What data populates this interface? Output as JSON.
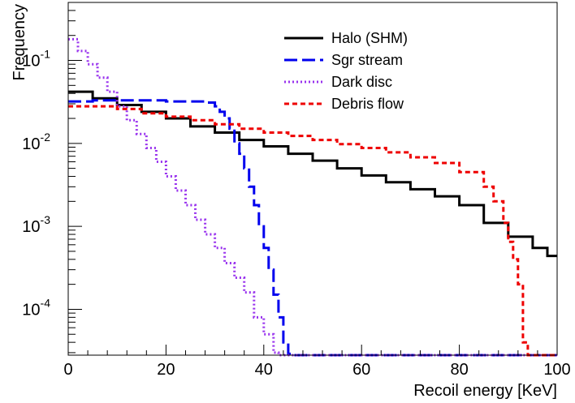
{
  "chart_data": {
    "type": "line",
    "xlabel": "Recoil energy [KeV]",
    "ylabel": "Frequency",
    "xlim": [
      0,
      100
    ],
    "ylim": [
      2.8e-05,
      0.5
    ],
    "y_scale": "log",
    "x_ticks": [
      0,
      20,
      40,
      60,
      80,
      100
    ],
    "y_ticks": [
      {
        "value": 0.1,
        "base": "10",
        "exp": "-1"
      },
      {
        "value": 0.01,
        "base": "10",
        "exp": "-2"
      },
      {
        "value": 0.001,
        "base": "10",
        "exp": "-3"
      },
      {
        "value": 0.0001,
        "base": "10",
        "exp": "-4"
      }
    ],
    "grid": false,
    "legend_position": "top-right",
    "series": [
      {
        "name": "Halo (SHM)",
        "color": "#000000",
        "dash": "solid",
        "x": [
          0,
          5,
          10,
          15,
          20,
          25,
          30,
          35,
          40,
          45,
          50,
          55,
          60,
          65,
          70,
          75,
          80,
          85,
          90,
          95,
          98,
          100
        ],
        "y": [
          0.042,
          0.035,
          0.029,
          0.024,
          0.02,
          0.016,
          0.0135,
          0.011,
          0.0092,
          0.0075,
          0.0062,
          0.005,
          0.0041,
          0.0034,
          0.0028,
          0.0023,
          0.0018,
          0.0011,
          0.00075,
          0.00055,
          0.00044,
          0.00044
        ]
      },
      {
        "name": "Sgr stream",
        "color": "#0000ee",
        "dash": "long-dash",
        "x": [
          0,
          5,
          10,
          15,
          20,
          25,
          28,
          30,
          31,
          32,
          33,
          34,
          35,
          36,
          37,
          38,
          39,
          40,
          41,
          42,
          43,
          44,
          45,
          46,
          50,
          100
        ],
        "y": [
          0.032,
          0.033,
          0.033,
          0.033,
          0.032,
          0.032,
          0.031,
          0.028,
          0.024,
          0.02,
          0.015,
          0.01,
          0.0075,
          0.005,
          0.003,
          0.0018,
          0.001,
          0.00055,
          0.0003,
          0.00015,
          8e-05,
          4e-05,
          2.9e-05,
          2.8e-05,
          2.8e-05,
          2.8e-05
        ]
      },
      {
        "name": "Dark disc",
        "color": "#9933ee",
        "dash": "dotted",
        "x": [
          0,
          2,
          4,
          6,
          8,
          10,
          12,
          14,
          16,
          18,
          20,
          22,
          24,
          26,
          28,
          30,
          32,
          34,
          36,
          38,
          40,
          42,
          43,
          100
        ],
        "y": [
          0.18,
          0.13,
          0.09,
          0.062,
          0.042,
          0.028,
          0.019,
          0.013,
          0.0088,
          0.006,
          0.004,
          0.0027,
          0.0018,
          0.0012,
          0.0008,
          0.00055,
          0.00036,
          0.00024,
          0.00016,
          8e-05,
          5e-05,
          3e-05,
          2.8e-05,
          2.8e-05
        ]
      },
      {
        "name": "Debris flow",
        "color": "#ee0000",
        "dash": "short-dash",
        "x": [
          0,
          5,
          10,
          15,
          20,
          25,
          30,
          35,
          40,
          45,
          50,
          55,
          60,
          65,
          70,
          75,
          80,
          85,
          87,
          89,
          90,
          91,
          92,
          93,
          94,
          100
        ],
        "y": [
          0.028,
          0.028,
          0.026,
          0.023,
          0.021,
          0.019,
          0.017,
          0.015,
          0.0135,
          0.0123,
          0.011,
          0.0098,
          0.0088,
          0.0078,
          0.0068,
          0.0058,
          0.0045,
          0.003,
          0.002,
          0.0011,
          0.00065,
          0.0004,
          0.0002,
          4e-05,
          2.8e-05,
          2.8e-05
        ]
      }
    ]
  }
}
